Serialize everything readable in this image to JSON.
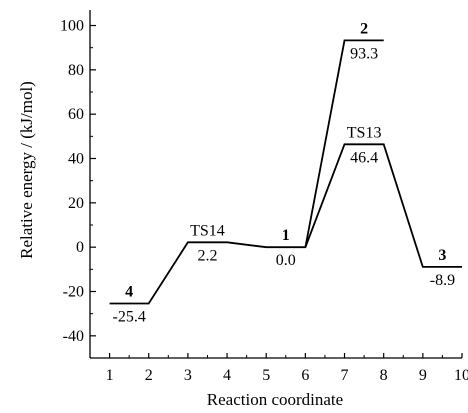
{
  "chart_data": {
    "type": "line",
    "title": "",
    "xlabel": "Reaction coordinate",
    "ylabel": "Relative energy / (kJ/mol)",
    "xlim": [
      0.5,
      10
    ],
    "ylim": [
      -50,
      107
    ],
    "xticks": [
      1,
      2,
      3,
      4,
      5,
      6,
      7,
      8,
      9,
      10
    ],
    "yticks": [
      -40,
      -20,
      0,
      20,
      40,
      60,
      80,
      100
    ],
    "grid": false,
    "levels": [
      {
        "x_start": 1,
        "x_end": 2,
        "y": -25.4,
        "value_label": "-25.4",
        "name": "4"
      },
      {
        "x_start": 3,
        "x_end": 4,
        "y": 2.2,
        "value_label": "2.2",
        "name": "TS14"
      },
      {
        "x_start": 5,
        "x_end": 6,
        "y": 0.0,
        "value_label": "0.0",
        "name": "1"
      },
      {
        "x_start": 7,
        "x_end": 8,
        "y": 93.3,
        "value_label": "93.3",
        "name": "2"
      },
      {
        "x_start": 7,
        "x_end": 8,
        "y": 46.4,
        "value_label": "46.4",
        "name": "TS13"
      },
      {
        "x_start": 9,
        "x_end": 10,
        "y": -8.9,
        "value_label": "-8.9",
        "name": "3"
      }
    ],
    "paths": [
      {
        "x": [
          1,
          2,
          3,
          4,
          5,
          6,
          7,
          8,
          9,
          10
        ],
        "y": [
          -25.4,
          -25.4,
          2.2,
          2.2,
          0.0,
          0.0,
          46.4,
          46.4,
          -8.9,
          -8.9
        ]
      },
      {
        "x": [
          6,
          7,
          8
        ],
        "y": [
          0.0,
          93.3,
          93.3
        ]
      }
    ]
  }
}
